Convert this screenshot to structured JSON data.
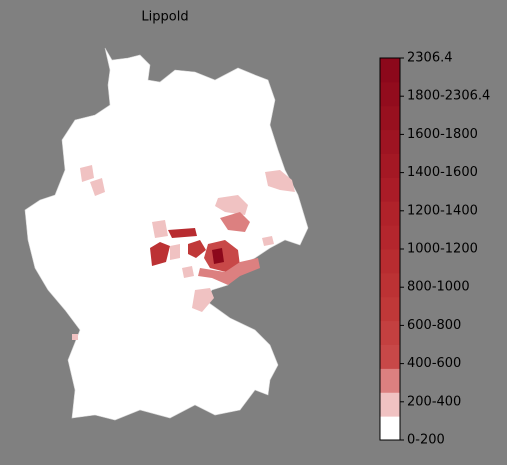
{
  "title": "Lippold",
  "colorbar": {
    "tick_labels": [
      "0-200",
      "200-400",
      "400-600",
      "600-800",
      "800-1000",
      "1000-1200",
      "1200-1400",
      "1400-1600",
      "1600-1800",
      "1800-2306.4",
      "2306.4"
    ],
    "band_colors": [
      "#ffffff",
      "#f0c2c2",
      "#dc8080",
      "#c84848",
      "#c44040",
      "#c03838",
      "#bc3234",
      "#b82c30",
      "#b4262d",
      "#b0222a",
      "#aa1c27",
      "#a41824",
      "#9e1422",
      "#98101f",
      "#920c1d",
      "#8c081b"
    ]
  }
}
